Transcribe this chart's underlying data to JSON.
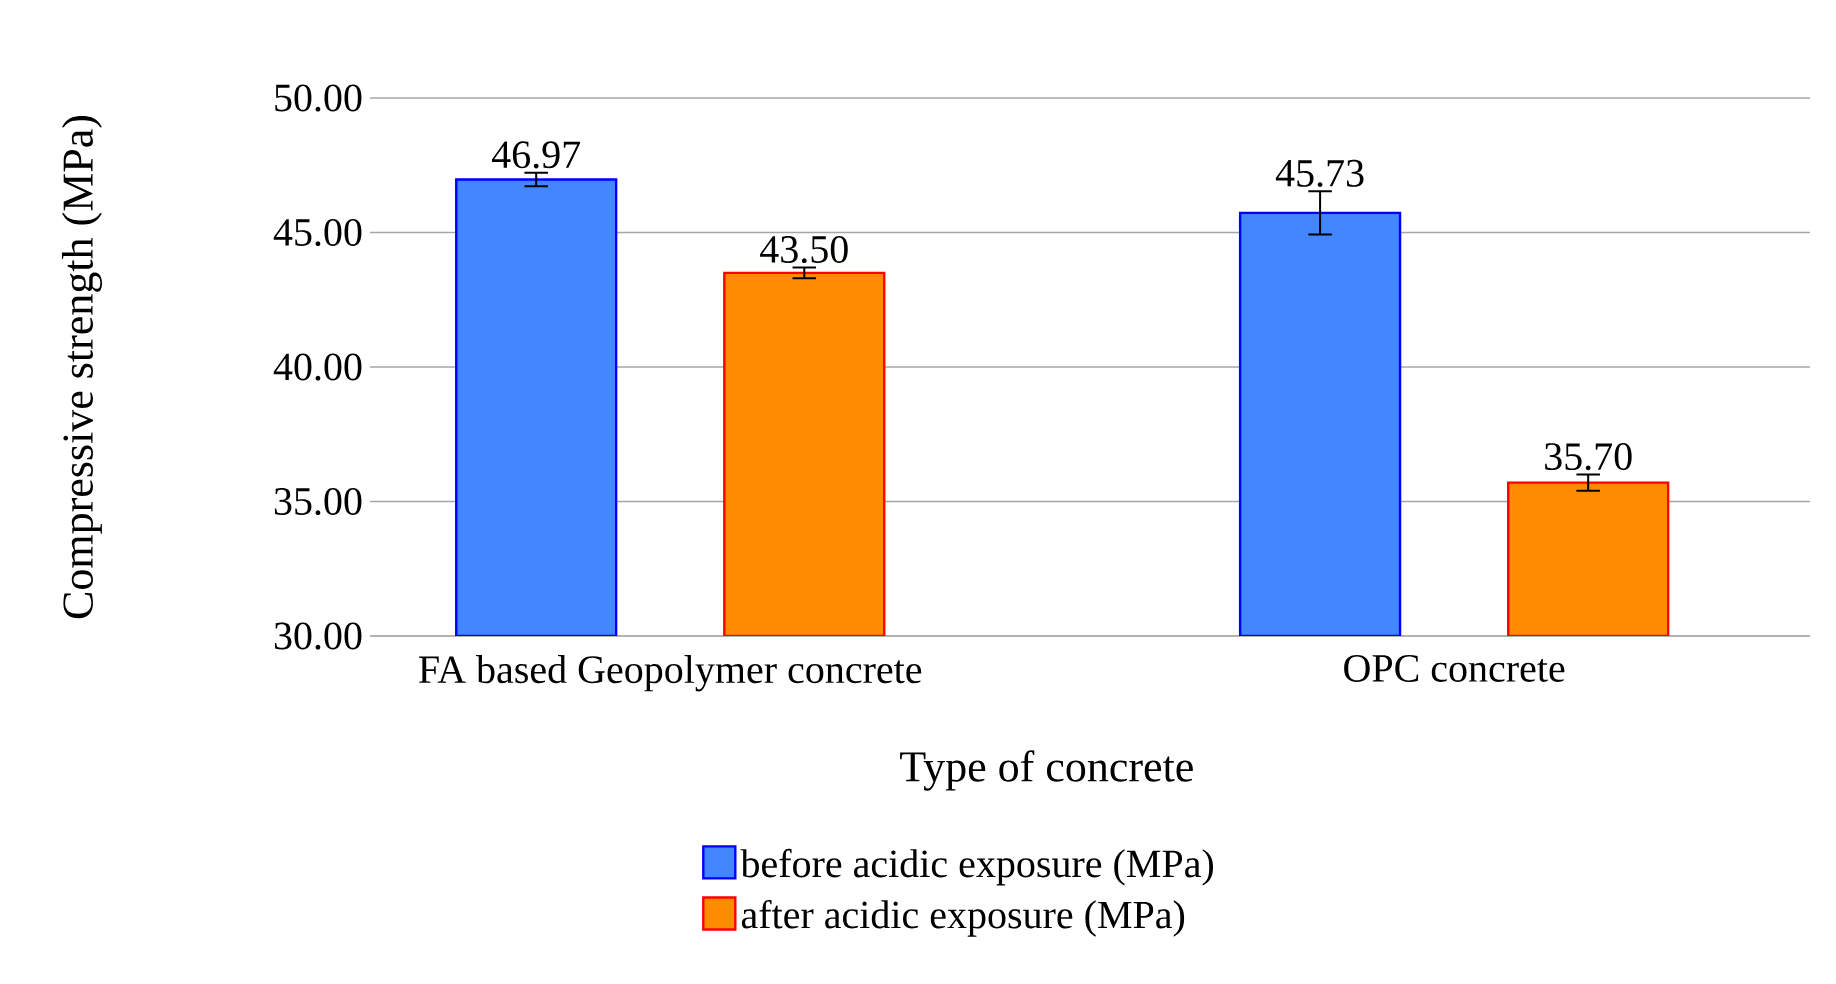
{
  "chart_data": {
    "type": "bar",
    "xlabel": "Type of concrete",
    "ylabel": "Compressive strength (MPa)",
    "categories": [
      "FA based Geopolymer concrete",
      "OPC concrete"
    ],
    "series": [
      {
        "name": "before acidic exposure (MPa)",
        "color": "#4287ff",
        "values": [
          46.97,
          45.73
        ],
        "errors": [
          0.25,
          0.8
        ],
        "value_labels": [
          "46.97",
          "45.73"
        ]
      },
      {
        "name": "after acidic exposure (MPa)",
        "color": "#ff8c00",
        "values": [
          43.5,
          35.7
        ],
        "errors": [
          0.2,
          0.3
        ],
        "value_labels": [
          "43.50",
          "35.70"
        ]
      }
    ],
    "ylim": [
      30,
      50
    ],
    "yticks": [
      {
        "value": 30,
        "label": "30.00"
      },
      {
        "value": 35,
        "label": "35.00"
      },
      {
        "value": 40,
        "label": "40.00"
      },
      {
        "value": 45,
        "label": "45.00"
      },
      {
        "value": 50,
        "label": "50.00"
      }
    ],
    "grid": "y",
    "legend": "bottom"
  }
}
